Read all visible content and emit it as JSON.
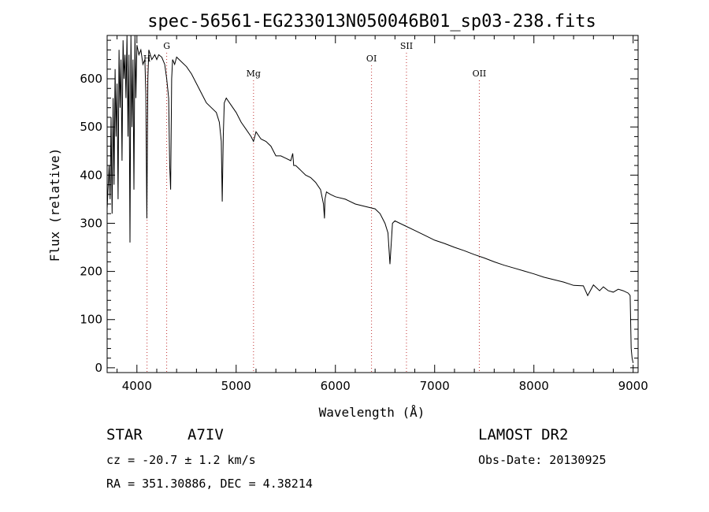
{
  "chart_data": {
    "type": "line",
    "title": "spec-56561-EG233013N050046B01_sp03-238.fits",
    "xlabel": "Wavelength (Å)",
    "ylabel": "Flux (relative)",
    "xlim": [
      3700,
      9050
    ],
    "ylim": [
      -10,
      690
    ],
    "xticks": [
      4000,
      5000,
      6000,
      7000,
      8000,
      9000
    ],
    "yticks": [
      0,
      100,
      200,
      300,
      400,
      500,
      600
    ],
    "grid": false,
    "spectral_lines": [
      {
        "label": "H",
        "wavelength": 4102
      },
      {
        "label": "G",
        "wavelength": 4300
      },
      {
        "label": "Mg",
        "wavelength": 5175
      },
      {
        "label": "OI",
        "wavelength": 6364
      },
      {
        "label": "SII",
        "wavelength": 6716
      },
      {
        "label": "OII",
        "wavelength": 7450
      }
    ],
    "series": [
      {
        "x": [
          3700,
          3720,
          3730,
          3740,
          3750,
          3760,
          3770,
          3780,
          3790,
          3800,
          3810,
          3820,
          3830,
          3840,
          3850,
          3860,
          3870,
          3880,
          3890,
          3900,
          3910,
          3920,
          3930,
          3940,
          3950,
          3960,
          3970,
          3980,
          3990,
          4000,
          4020,
          4040,
          4060,
          4080,
          4090,
          4100,
          4110,
          4120,
          4150,
          4180,
          4200,
          4220,
          4250,
          4280,
          4300,
          4320,
          4330,
          4340,
          4350,
          4360,
          4380,
          4400,
          4450,
          4500,
          4550,
          4600,
          4650,
          4700,
          4750,
          4800,
          4830,
          4850,
          4860,
          4870,
          4880,
          4900,
          4950,
          5000,
          5050,
          5100,
          5150,
          5175,
          5200,
          5250,
          5300,
          5350,
          5400,
          5450,
          5500,
          5550,
          5570,
          5580,
          5600,
          5650,
          5700,
          5750,
          5800,
          5850,
          5880,
          5890,
          5895,
          5910,
          5950,
          6000,
          6100,
          6200,
          6300,
          6400,
          6450,
          6500,
          6530,
          6550,
          6563,
          6575,
          6600,
          6650,
          6700,
          6800,
          6900,
          7000,
          7100,
          7200,
          7300,
          7400,
          7500,
          7600,
          7700,
          7800,
          7900,
          8000,
          8100,
          8200,
          8300,
          8400,
          8498,
          8542,
          8600,
          8662,
          8700,
          8750,
          8800,
          8850,
          8900,
          8950,
          8970,
          8980,
          8990,
          9000
        ],
        "y": [
          330,
          420,
          350,
          520,
          320,
          560,
          380,
          620,
          480,
          590,
          350,
          660,
          540,
          640,
          430,
          680,
          600,
          650,
          560,
          690,
          480,
          650,
          260,
          690,
          500,
          640,
          370,
          690,
          560,
          670,
          650,
          660,
          630,
          640,
          570,
          310,
          600,
          660,
          640,
          650,
          640,
          650,
          645,
          630,
          600,
          560,
          420,
          370,
          600,
          640,
          630,
          645,
          635,
          625,
          610,
          590,
          570,
          550,
          540,
          530,
          510,
          470,
          345,
          480,
          550,
          560,
          545,
          530,
          510,
          495,
          480,
          470,
          490,
          475,
          470,
          460,
          440,
          440,
          435,
          430,
          445,
          420,
          420,
          410,
          400,
          395,
          385,
          370,
          340,
          310,
          350,
          365,
          360,
          355,
          350,
          340,
          335,
          330,
          320,
          300,
          280,
          215,
          260,
          300,
          305,
          300,
          295,
          285,
          275,
          265,
          258,
          250,
          243,
          235,
          228,
          220,
          213,
          207,
          201,
          195,
          188,
          183,
          178,
          171,
          170,
          150,
          172,
          160,
          168,
          160,
          157,
          163,
          160,
          155,
          150,
          40,
          20,
          10
        ]
      }
    ]
  },
  "info": {
    "class_label": "STAR",
    "subclass": "A7IV",
    "cz": "cz = -20.7 ± 1.2 km/s",
    "radec": "RA = 351.30886, DEC =   4.38214",
    "survey": "LAMOST DR2",
    "obs_date": "Obs-Date: 20130925"
  }
}
